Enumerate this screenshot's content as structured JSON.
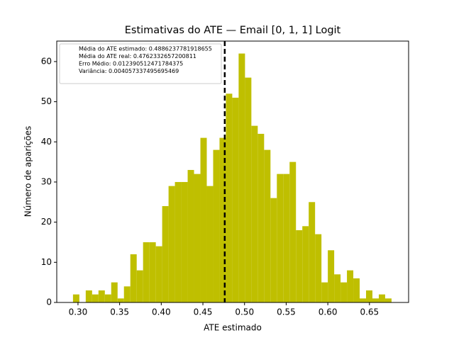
{
  "chart_data": {
    "type": "histogram",
    "title": "Estimativas do ATE — Email [0, 1, 1] Logit",
    "xlabel": "ATE estimado",
    "ylabel": "Número de aparições",
    "color": "#bfbf00",
    "bins": [
      0.294,
      0.30165,
      0.3093,
      0.31695,
      0.3246,
      0.33225,
      0.3399,
      0.34755,
      0.3552,
      0.36285,
      0.3705,
      0.37815,
      0.3858,
      0.39345,
      0.4011,
      0.40875,
      0.4164,
      0.42405,
      0.4317,
      0.43935,
      0.447,
      0.45465,
      0.4623,
      0.46995,
      0.4776,
      0.48525,
      0.4929,
      0.50055,
      0.5082,
      0.51585,
      0.5235,
      0.53115,
      0.5388,
      0.54645,
      0.5541,
      0.56175,
      0.5694,
      0.57705,
      0.5847,
      0.59235,
      0.6,
      0.60765,
      0.6153,
      0.62295,
      0.6306,
      0.63825,
      0.6459,
      0.65355,
      0.6612,
      0.66885,
      0.6765
    ],
    "values": [
      2,
      0,
      3,
      2,
      3,
      2,
      5,
      1,
      4,
      12,
      8,
      15,
      15,
      14,
      24,
      29,
      30,
      30,
      33,
      32,
      41,
      29,
      38,
      41,
      52,
      51,
      62,
      56,
      44,
      42,
      38,
      26,
      32,
      32,
      35,
      18,
      19,
      25,
      17,
      5,
      13,
      7,
      5,
      8,
      6,
      1,
      3,
      1,
      2,
      1
    ],
    "vline": 0.4762332657200811,
    "legend_texts": [
      "Média do ATE estimado: 0.4886237781918655",
      "Média do ATE real: 0.4762332657200811",
      "Erro Médio: 0.012390512471784375",
      "Variância: 0.004057337495695469"
    ],
    "legend_position": "upper left",
    "xlim": [
      0.2745,
      0.697
    ],
    "ylim": [
      0,
      65.1
    ],
    "xticks": [
      {
        "value": 0.3,
        "label": "0.30"
      },
      0.35,
      {
        "value": 0.4,
        "label": "0.40"
      },
      0.45,
      {
        "value": 0.5,
        "label": "0.50"
      },
      0.55,
      {
        "value": 0.6,
        "label": "0.60"
      },
      0.65
    ],
    "yticks": [
      0,
      10,
      20,
      30,
      40,
      50,
      60
    ]
  }
}
